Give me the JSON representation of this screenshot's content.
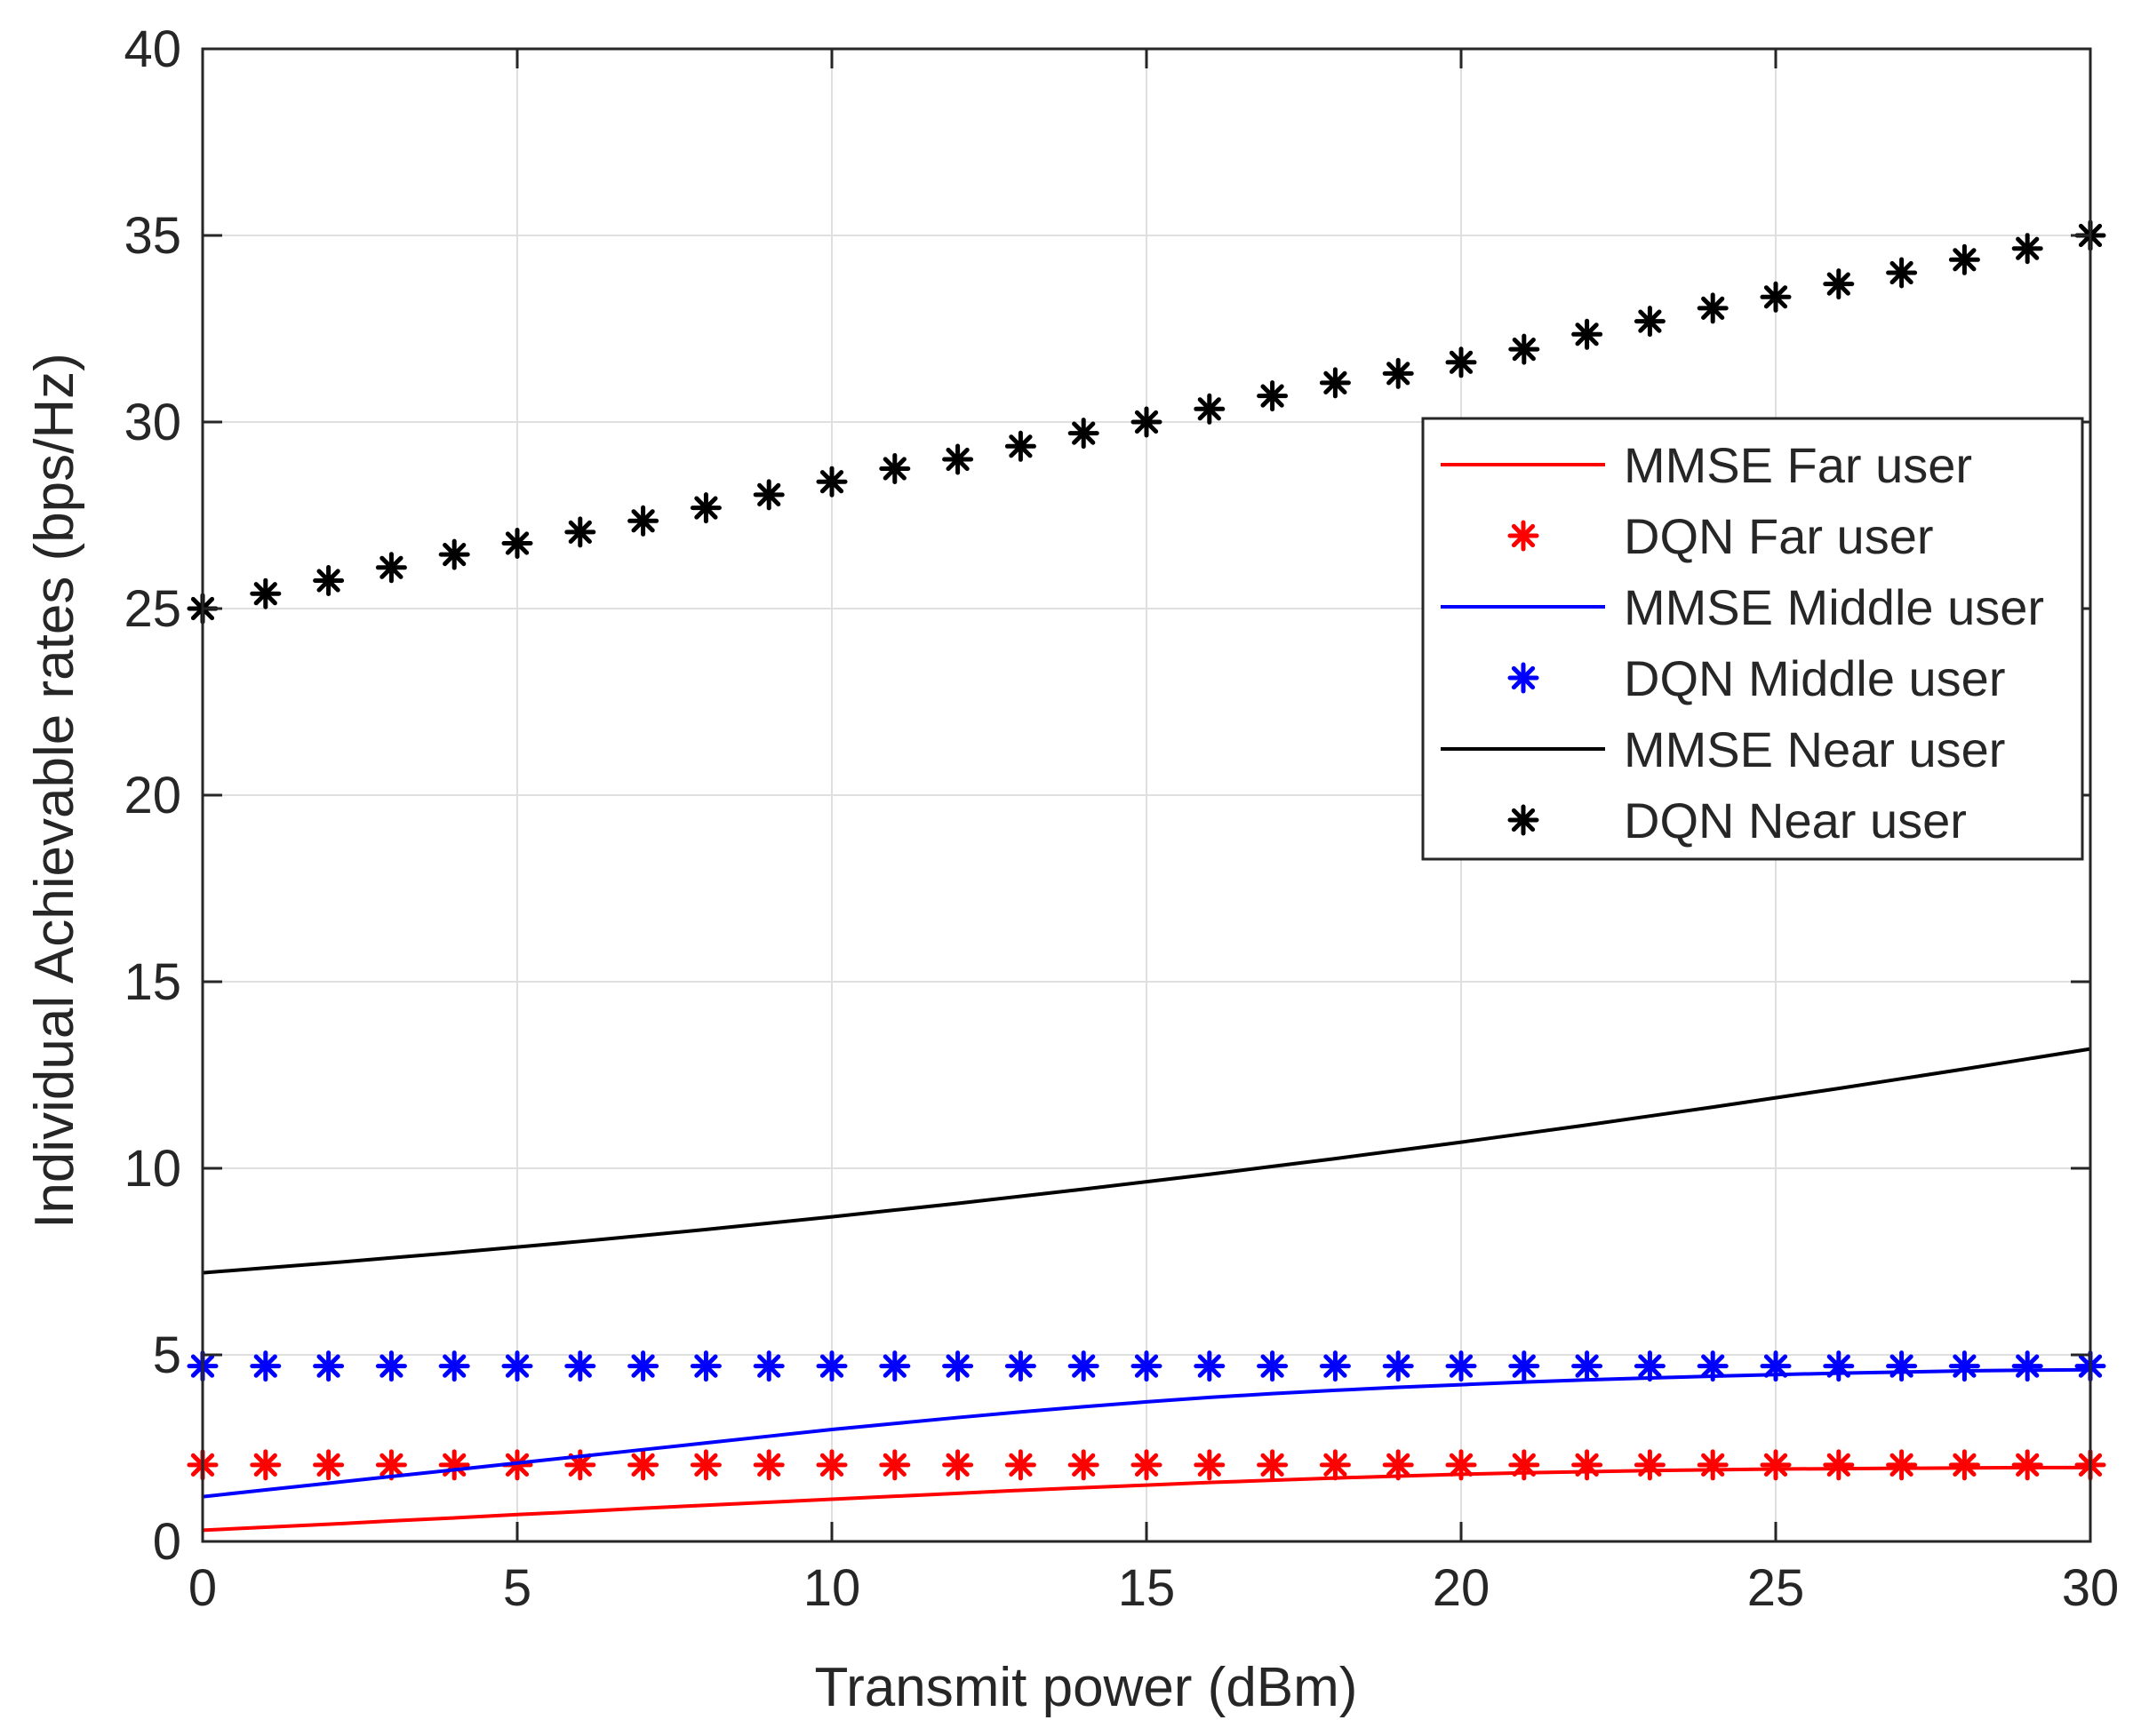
{
  "chart_data": {
    "type": "line",
    "title": "",
    "xlabel": "Transmit power (dBm)",
    "ylabel": "Individual Achievable rates (bps/Hz)",
    "xlim": [
      0,
      30
    ],
    "ylim": [
      0,
      40
    ],
    "xticks": [
      "0",
      "5",
      "10",
      "15",
      "20",
      "25",
      "30"
    ],
    "yticks": [
      "0",
      "5",
      "10",
      "15",
      "20",
      "25",
      "30",
      "35",
      "40"
    ],
    "grid": true,
    "legend_position": "upper-right",
    "x": [
      0,
      1,
      2,
      3,
      4,
      5,
      6,
      7,
      8,
      9,
      10,
      11,
      12,
      13,
      14,
      15,
      16,
      17,
      18,
      19,
      20,
      21,
      22,
      23,
      24,
      25,
      26,
      27,
      28,
      29,
      30
    ],
    "series": [
      {
        "name": "MMSE Far user",
        "style": "line",
        "color": "#ff0000",
        "values": [
          0.3,
          0.38,
          0.46,
          0.55,
          0.63,
          0.72,
          0.8,
          0.89,
          0.97,
          1.05,
          1.13,
          1.21,
          1.29,
          1.37,
          1.44,
          1.51,
          1.58,
          1.64,
          1.7,
          1.75,
          1.8,
          1.84,
          1.87,
          1.9,
          1.92,
          1.94,
          1.95,
          1.96,
          1.97,
          1.98,
          1.98
        ]
      },
      {
        "name": "DQN Far user",
        "style": "marker",
        "color": "#ff0000",
        "values": [
          2.05,
          2.05,
          2.05,
          2.05,
          2.05,
          2.05,
          2.05,
          2.05,
          2.05,
          2.05,
          2.05,
          2.05,
          2.05,
          2.05,
          2.05,
          2.05,
          2.05,
          2.05,
          2.05,
          2.05,
          2.05,
          2.05,
          2.05,
          2.05,
          2.05,
          2.05,
          2.05,
          2.05,
          2.05,
          2.05,
          2.05
        ]
      },
      {
        "name": "MMSE Middle user",
        "style": "line",
        "color": "#0000ff",
        "values": [
          1.2,
          1.38,
          1.56,
          1.74,
          1.92,
          2.1,
          2.28,
          2.46,
          2.64,
          2.82,
          3.0,
          3.16,
          3.32,
          3.47,
          3.61,
          3.74,
          3.86,
          3.96,
          4.05,
          4.13,
          4.2,
          4.27,
          4.33,
          4.38,
          4.43,
          4.47,
          4.51,
          4.54,
          4.57,
          4.59,
          4.6
        ]
      },
      {
        "name": "DQN Middle user",
        "style": "marker",
        "color": "#0000ff",
        "values": [
          4.7,
          4.7,
          4.7,
          4.7,
          4.7,
          4.7,
          4.7,
          4.7,
          4.7,
          4.7,
          4.7,
          4.7,
          4.7,
          4.7,
          4.7,
          4.7,
          4.7,
          4.7,
          4.7,
          4.7,
          4.7,
          4.7,
          4.7,
          4.7,
          4.7,
          4.7,
          4.7,
          4.7,
          4.7,
          4.7,
          4.7
        ]
      },
      {
        "name": "MMSE Near user",
        "style": "line",
        "color": "#000000",
        "values": [
          7.2,
          7.33,
          7.46,
          7.6,
          7.74,
          7.89,
          8.04,
          8.2,
          8.36,
          8.53,
          8.7,
          8.88,
          9.06,
          9.25,
          9.44,
          9.64,
          9.84,
          10.05,
          10.26,
          10.48,
          10.7,
          10.93,
          11.16,
          11.4,
          11.64,
          11.89,
          12.14,
          12.4,
          12.66,
          12.93,
          13.2
        ]
      },
      {
        "name": "DQN Near user",
        "style": "marker",
        "color": "#000000",
        "values": [
          25.0,
          25.4,
          25.75,
          26.1,
          26.45,
          26.75,
          27.05,
          27.35,
          27.7,
          28.05,
          28.4,
          28.75,
          29.0,
          29.35,
          29.7,
          30.0,
          30.35,
          30.7,
          31.05,
          31.3,
          31.6,
          31.95,
          32.35,
          32.7,
          33.05,
          33.35,
          33.7,
          34.0,
          34.35,
          34.65,
          35.0
        ]
      }
    ]
  }
}
